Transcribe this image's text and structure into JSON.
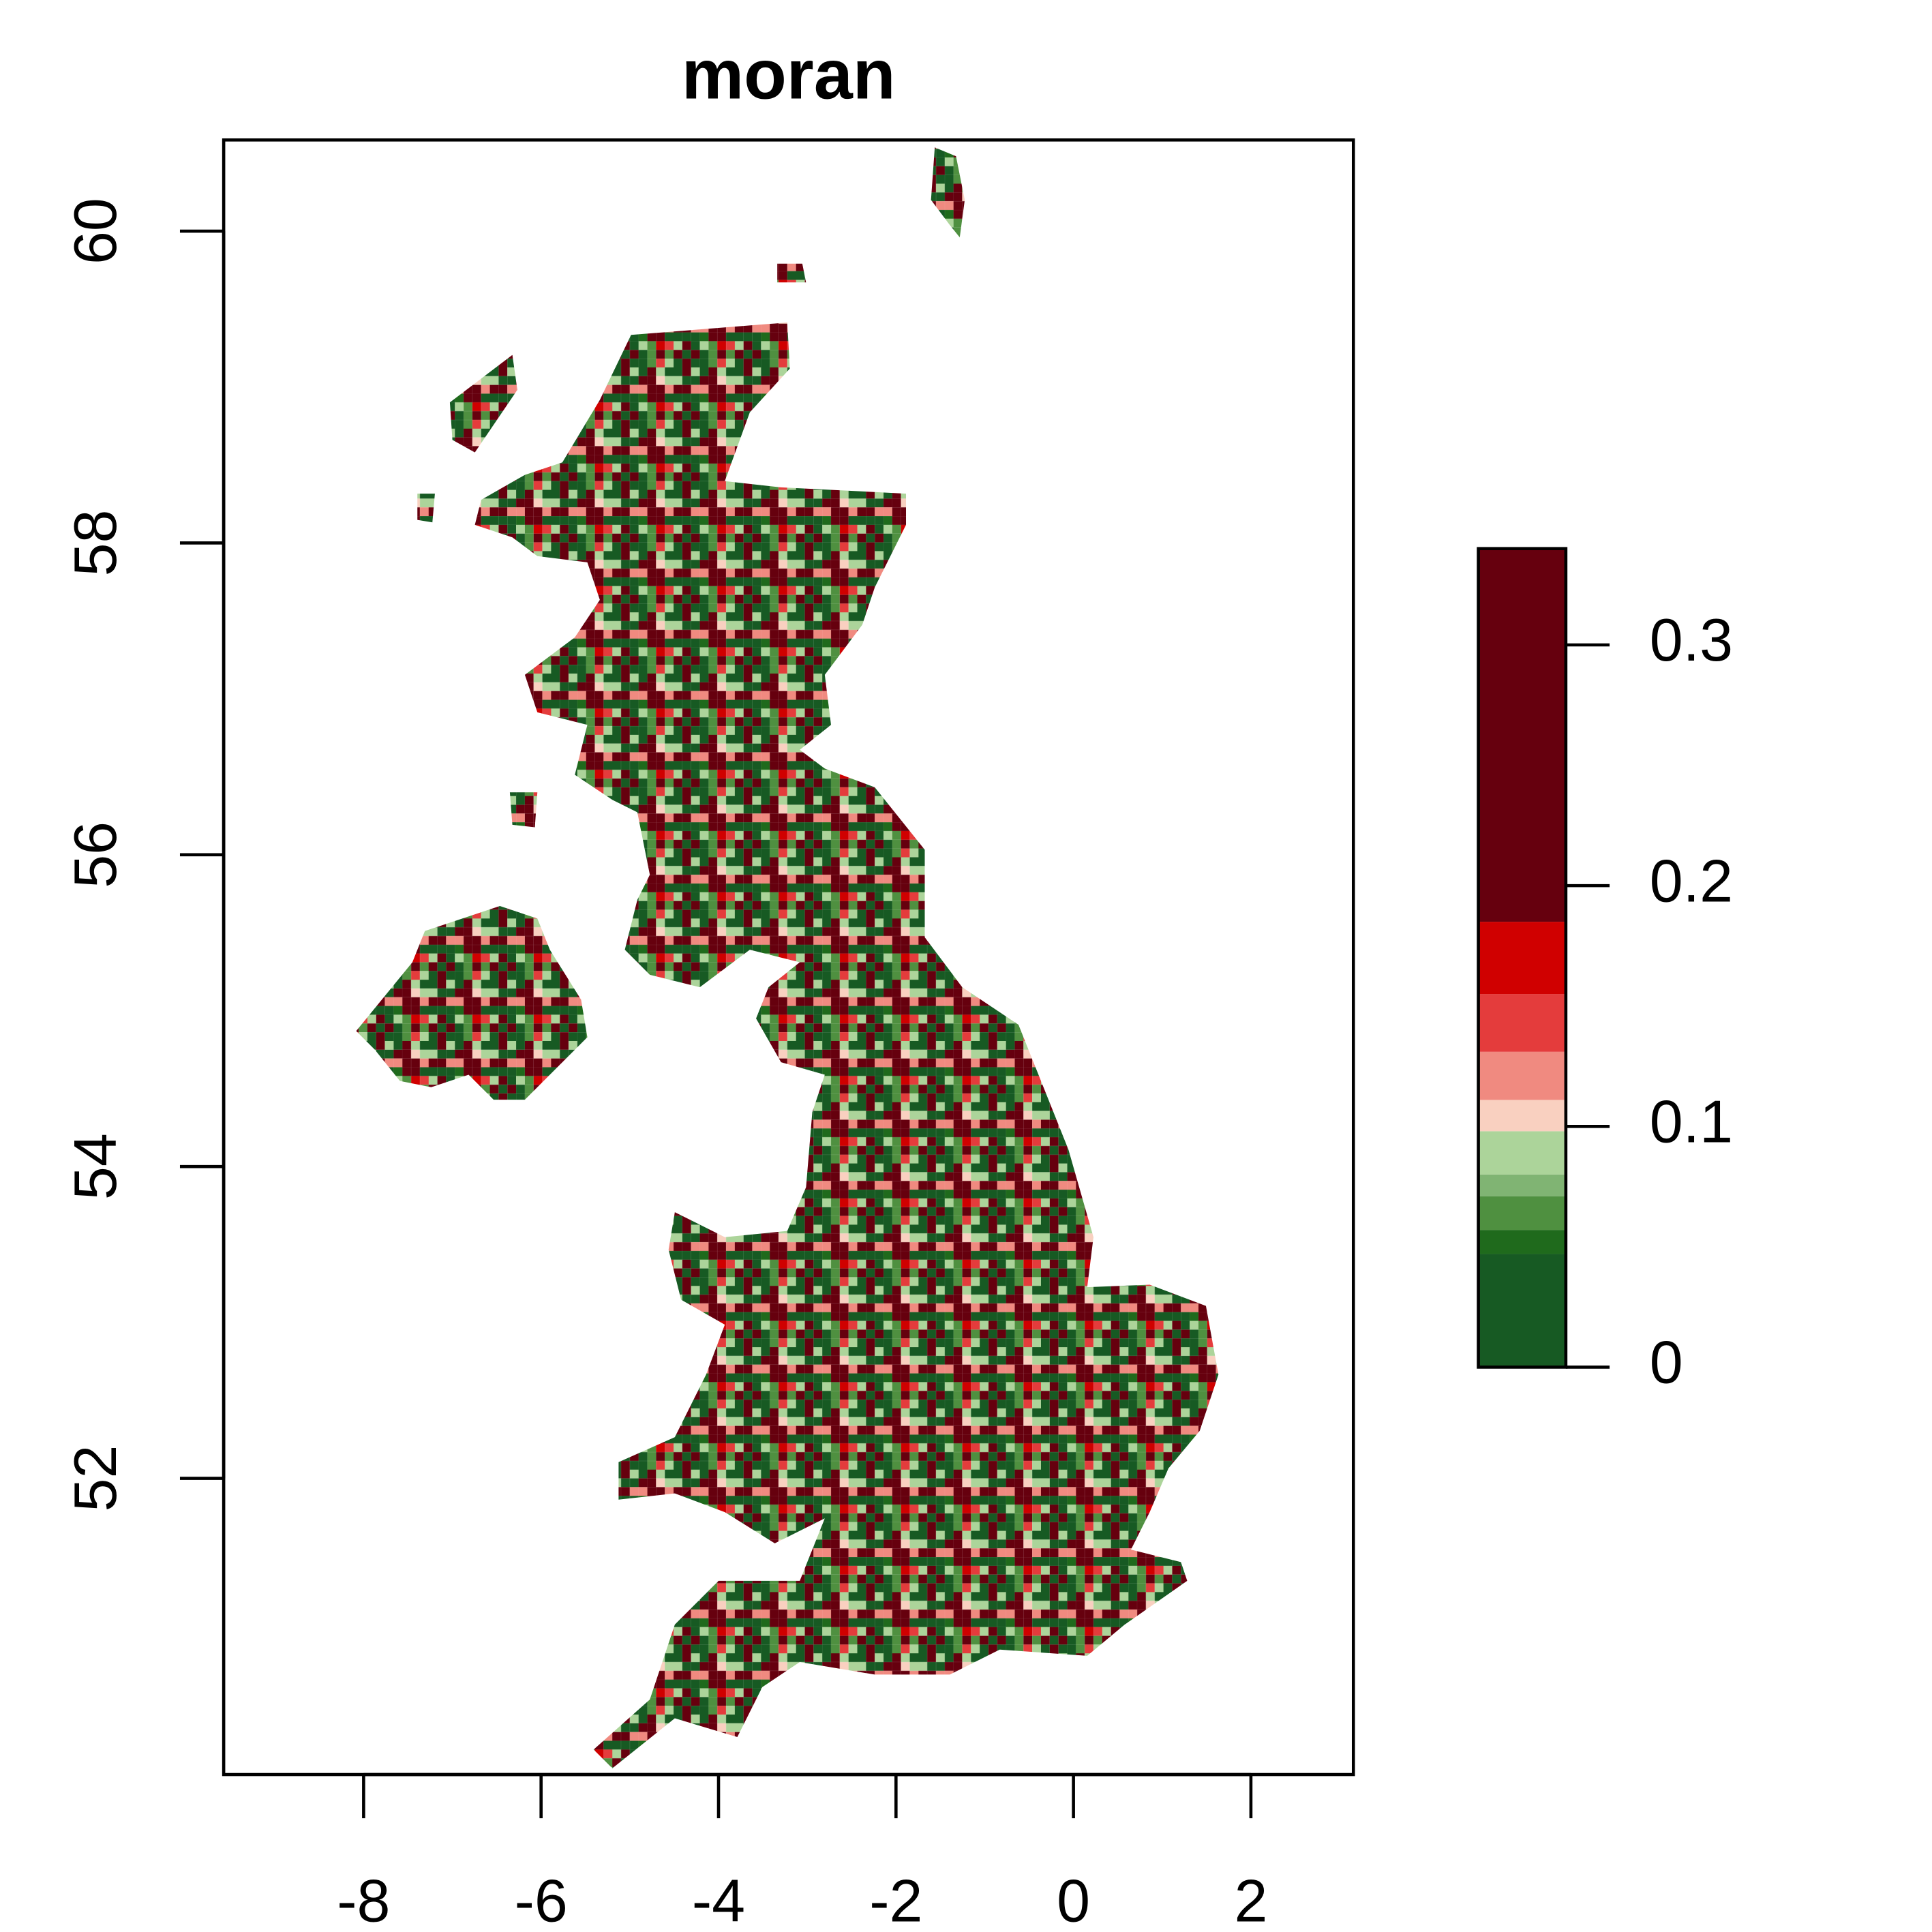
{
  "chart_data": {
    "type": "raster",
    "title": "moran",
    "xlim": [
      -9.577,
      3.155
    ],
    "ylim": [
      50.1,
      60.585
    ],
    "xticks": [
      -8,
      -6,
      -4,
      -2,
      0,
      2
    ],
    "yticks": [
      52,
      54,
      56,
      58,
      60
    ],
    "colorbar": {
      "lim": [
        0,
        0.34
      ],
      "ticks": [
        0,
        0.1,
        0.2,
        0.3
      ],
      "breaks": [
        0,
        0.047,
        0.057,
        0.071,
        0.08,
        0.098,
        0.111,
        0.131,
        0.155,
        0.185,
        0.34
      ],
      "colors": [
        "#175a23",
        "#1f6a1c",
        "#4f9040",
        "#80b473",
        "#acd49a",
        "#f9d0c0",
        "#f08a80",
        "#e43c3c",
        "#d00000",
        "#66000e"
      ]
    }
  }
}
